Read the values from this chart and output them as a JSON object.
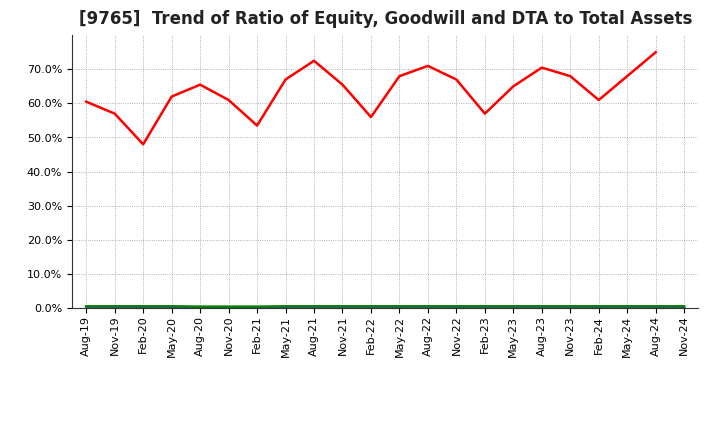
{
  "title": "[9765]  Trend of Ratio of Equity, Goodwill and DTA to Total Assets",
  "x_labels": [
    "Aug-19",
    "Nov-19",
    "Feb-20",
    "May-20",
    "Aug-20",
    "Nov-20",
    "Feb-21",
    "May-21",
    "Aug-21",
    "Nov-21",
    "Feb-22",
    "May-22",
    "Aug-22",
    "Nov-22",
    "Feb-23",
    "May-23",
    "Aug-23",
    "Nov-23",
    "Feb-24",
    "May-24",
    "Aug-24",
    "Nov-24"
  ],
  "equity": [
    60.5,
    57.0,
    48.0,
    62.0,
    65.5,
    61.0,
    53.5,
    67.0,
    72.5,
    65.5,
    56.0,
    68.0,
    71.0,
    67.0,
    57.0,
    65.0,
    70.5,
    68.0,
    61.0,
    68.0,
    75.0,
    null
  ],
  "goodwill": [
    0.0,
    0.0,
    0.0,
    0.0,
    0.0,
    0.0,
    0.0,
    0.0,
    0.0,
    0.0,
    0.0,
    0.0,
    0.0,
    0.0,
    0.0,
    0.0,
    0.0,
    0.0,
    0.0,
    0.0,
    0.0,
    0.0
  ],
  "dta": [
    0.5,
    0.5,
    0.5,
    0.5,
    0.4,
    0.4,
    0.4,
    0.5,
    0.5,
    0.5,
    0.5,
    0.5,
    0.5,
    0.5,
    0.5,
    0.5,
    0.5,
    0.5,
    0.5,
    0.5,
    0.5,
    0.5
  ],
  "equity_color": "#FF0000",
  "goodwill_color": "#0000FF",
  "dta_color": "#008000",
  "background_color": "#FFFFFF",
  "plot_bg_color": "#FFFFFF",
  "grid_color": "#999999",
  "ylim_min": 0,
  "ylim_max": 80,
  "yticks": [
    0,
    10,
    20,
    30,
    40,
    50,
    60,
    70
  ],
  "title_fontsize": 12,
  "tick_fontsize": 8,
  "legend_fontsize": 9,
  "line_width": 1.8
}
